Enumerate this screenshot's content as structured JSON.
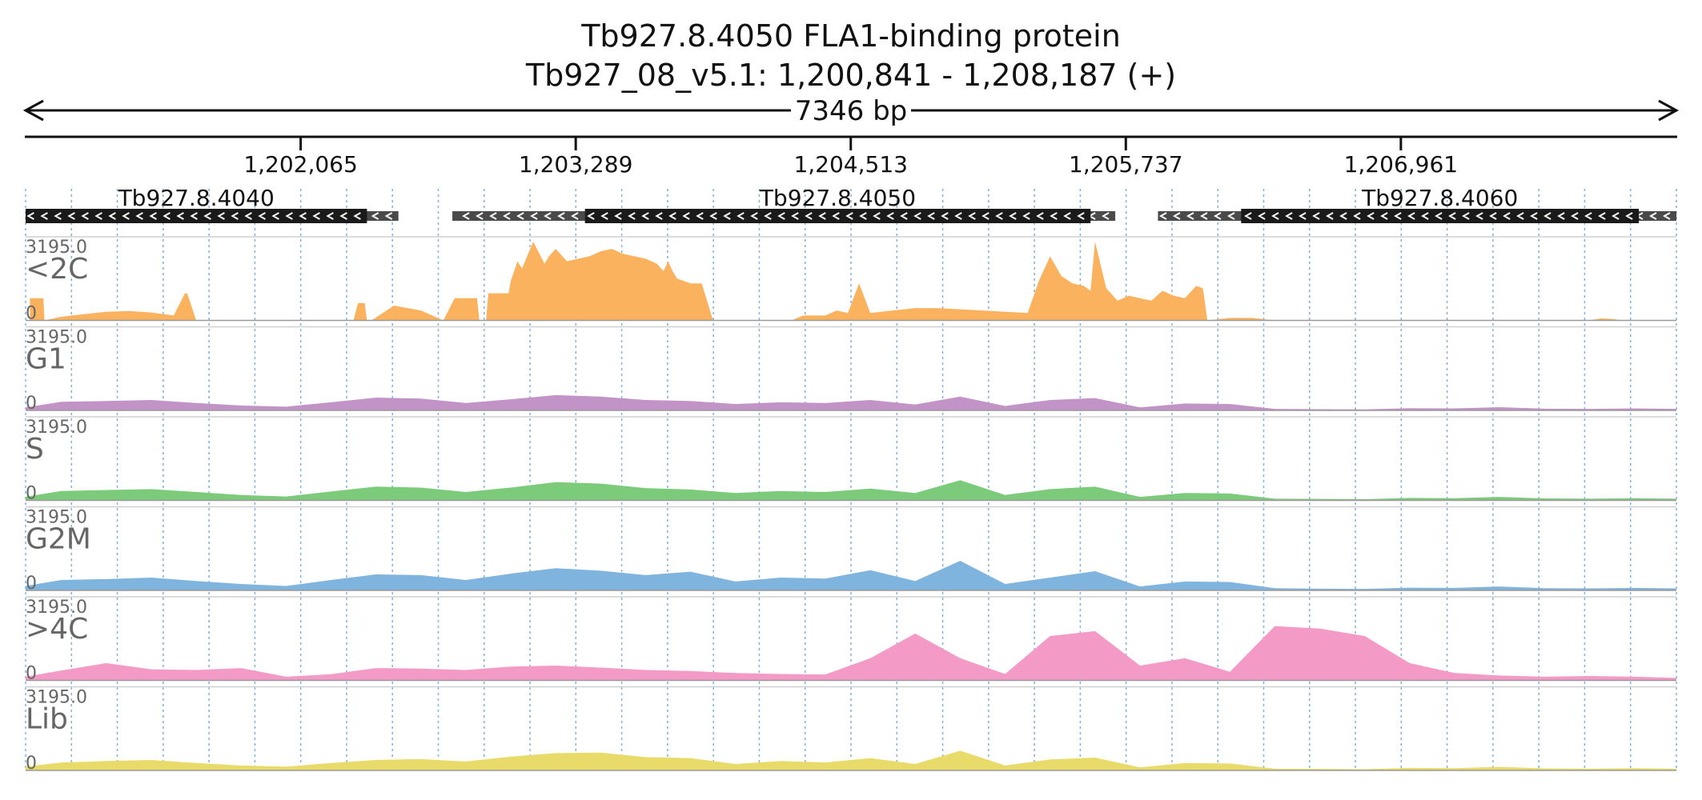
{
  "colors": {
    "c2c": "#fbb25e",
    "g1": "#c293c6",
    "s": "#7ccb7b",
    "g2m": "#7fb4df",
    "c4c": "#f39ac6",
    "lib": "#e8db6a",
    "gene_box": "#1a1a1a",
    "utr": "#4a4a4a",
    "grid": "#7fb2dd"
  },
  "chart_data": {
    "type": "area",
    "title": "Tb927.8.4050  FLA1-binding protein",
    "subtitle": "Tb927_08_v5.1: 1,200,841 - 1,208,187 (+)",
    "span_label": "7346 bp",
    "xlim": [
      1200841,
      1208187
    ],
    "ticks": [
      {
        "pos": 1202065,
        "label": "1,202,065"
      },
      {
        "pos": 1203289,
        "label": "1,203,289"
      },
      {
        "pos": 1204513,
        "label": "1,204,513"
      },
      {
        "pos": 1205737,
        "label": "1,205,737"
      },
      {
        "pos": 1206961,
        "label": "1,206,961"
      }
    ],
    "genes": [
      {
        "name": "Tb927.8.4040",
        "start": 1200841,
        "end": 1202360,
        "utr_end": 1202500
      },
      {
        "name": "Tb927.8.4050",
        "start": 1203330,
        "end": 1205580,
        "utr_start": 1202740,
        "utr_end": 1205690
      },
      {
        "name": "Tb927.8.4060",
        "start": 1206250,
        "end": 1208020,
        "utr_start": 1205880,
        "utr_end": 1208187
      }
    ],
    "ylim": [
      0,
      3195.0
    ],
    "tracks": [
      {
        "name": "<2C",
        "ymax_label": "3195.0",
        "ymin_label": "0",
        "color_key": "c2c",
        "x": [
          1200860,
          1200920,
          1200925,
          1201000,
          1201100,
          1201200,
          1201300,
          1201400,
          1201500,
          1201550,
          1201560,
          1201600,
          1201620,
          1201680,
          1201690,
          1202300,
          1202320,
          1202350,
          1202360,
          1202380,
          1202480,
          1202600,
          1202700,
          1202750,
          1202850,
          1202860,
          1202890,
          1202900,
          1202990,
          1203000,
          1203030,
          1203050,
          1203100,
          1203150,
          1203170,
          1203200,
          1203250,
          1203300,
          1203350,
          1203400,
          1203450,
          1203500,
          1203550,
          1203600,
          1203650,
          1203680,
          1203700,
          1203720,
          1203740,
          1203800,
          1203850,
          1203900,
          1204250,
          1204300,
          1204400,
          1204450,
          1204500,
          1204550,
          1204600,
          1204700,
          1204800,
          1204900,
          1205000,
          1205100,
          1205200,
          1205300,
          1205350,
          1205400,
          1205450,
          1205500,
          1205550,
          1205580,
          1205600,
          1205650,
          1205700,
          1205750,
          1205800,
          1205850,
          1205900,
          1205950,
          1206000,
          1206050,
          1206080,
          1206100,
          1206200,
          1206300,
          1206400,
          1207800,
          1207850,
          1207900,
          1207950,
          1208187
        ],
        "y": [
          900,
          900,
          0,
          150,
          250,
          350,
          380,
          320,
          200,
          1100,
          1100,
          0,
          0,
          0,
          0,
          0,
          700,
          700,
          0,
          0,
          600,
          400,
          0,
          900,
          900,
          0,
          0,
          1100,
          1100,
          1600,
          2400,
          2100,
          3195,
          2300,
          2600,
          2900,
          2400,
          2500,
          2600,
          2800,
          2900,
          2700,
          2600,
          2500,
          2300,
          2000,
          2400,
          2000,
          1700,
          1500,
          1500,
          0,
          0,
          200,
          200,
          400,
          300,
          1500,
          300,
          400,
          500,
          500,
          450,
          400,
          350,
          300,
          1600,
          2600,
          1800,
          1500,
          1400,
          1200,
          3195,
          1300,
          800,
          1000,
          900,
          800,
          1200,
          1000,
          900,
          1400,
          1300,
          0,
          100,
          100,
          0,
          0,
          80,
          60,
          0,
          0
        ]
      },
      {
        "name": "G1",
        "ymax_label": "3195.0",
        "ymin_label": "0",
        "color_key": "g1",
        "x": [
          1200841,
          1201000,
          1201200,
          1201400,
          1201600,
          1201800,
          1202000,
          1202200,
          1202400,
          1202600,
          1202800,
          1203000,
          1203200,
          1203400,
          1203600,
          1203800,
          1204000,
          1204200,
          1204400,
          1204600,
          1204800,
          1205000,
          1205200,
          1205400,
          1205600,
          1205800,
          1206000,
          1206200,
          1206400,
          1206600,
          1206800,
          1207000,
          1207200,
          1207400,
          1207600,
          1207800,
          1208000,
          1208187
        ],
        "y": [
          120,
          350,
          380,
          420,
          300,
          200,
          150,
          330,
          520,
          480,
          300,
          450,
          620,
          560,
          420,
          380,
          260,
          330,
          300,
          420,
          240,
          560,
          180,
          420,
          500,
          120,
          280,
          260,
          60,
          50,
          40,
          90,
          80,
          130,
          70,
          60,
          80,
          60
        ]
      },
      {
        "name": "S",
        "ymax_label": "3195.0",
        "ymin_label": "0",
        "color_key": "s",
        "x": [
          1200841,
          1201000,
          1201200,
          1201400,
          1201600,
          1201800,
          1202000,
          1202200,
          1202400,
          1202600,
          1202800,
          1203000,
          1203200,
          1203400,
          1203600,
          1203800,
          1204000,
          1204200,
          1204400,
          1204600,
          1204800,
          1205000,
          1205200,
          1205400,
          1205600,
          1205800,
          1206000,
          1206200,
          1206400,
          1206600,
          1206800,
          1207000,
          1207200,
          1207400,
          1207600,
          1207800,
          1208000,
          1208187
        ],
        "y": [
          150,
          380,
          420,
          460,
          340,
          220,
          160,
          360,
          560,
          520,
          340,
          520,
          740,
          680,
          500,
          440,
          300,
          380,
          340,
          480,
          300,
          820,
          220,
          460,
          560,
          140,
          300,
          280,
          70,
          60,
          50,
          100,
          90,
          140,
          80,
          70,
          90,
          70
        ]
      },
      {
        "name": "G2M",
        "ymax_label": "3195.0",
        "ymin_label": "0",
        "color_key": "g2m",
        "x": [
          1200841,
          1201000,
          1201200,
          1201400,
          1201600,
          1201800,
          1202000,
          1202200,
          1202400,
          1202600,
          1202800,
          1203000,
          1203200,
          1203400,
          1203600,
          1203800,
          1204000,
          1204200,
          1204400,
          1204600,
          1204800,
          1205000,
          1205200,
          1205400,
          1205600,
          1205800,
          1206000,
          1206200,
          1206400,
          1206600,
          1206800,
          1207000,
          1207200,
          1207400,
          1207600,
          1207800,
          1208000,
          1208187
        ],
        "y": [
          180,
          420,
          460,
          520,
          380,
          260,
          180,
          420,
          650,
          620,
          420,
          680,
          900,
          800,
          620,
          760,
          360,
          520,
          480,
          820,
          380,
          1200,
          260,
          520,
          780,
          160,
          360,
          340,
          90,
          70,
          60,
          110,
          100,
          160,
          90,
          80,
          100,
          80
        ]
      },
      {
        "name": ">4C",
        "ymax_label": "3195.0",
        "ymin_label": "0",
        "color_key": "c4c",
        "x": [
          1200841,
          1201000,
          1201200,
          1201400,
          1201600,
          1201800,
          1202000,
          1202200,
          1202400,
          1202600,
          1202800,
          1203000,
          1203200,
          1203400,
          1203600,
          1203800,
          1204000,
          1204200,
          1204400,
          1204600,
          1204800,
          1205000,
          1205200,
          1205400,
          1205600,
          1205800,
          1206000,
          1206200,
          1206400,
          1206600,
          1206800,
          1207000,
          1207200,
          1207400,
          1207600,
          1207800,
          1208000,
          1208187
        ],
        "y": [
          150,
          400,
          700,
          450,
          420,
          500,
          150,
          250,
          500,
          480,
          420,
          560,
          600,
          520,
          420,
          380,
          300,
          260,
          240,
          900,
          1900,
          900,
          260,
          1800,
          2000,
          600,
          900,
          350,
          2200,
          2100,
          1800,
          700,
          300,
          200,
          150,
          180,
          150,
          100
        ]
      },
      {
        "name": "Lib",
        "ymax_label": "3195.0",
        "ymin_label": "0",
        "color_key": "lib",
        "x": [
          1200841,
          1201000,
          1201200,
          1201400,
          1201600,
          1201800,
          1202000,
          1202200,
          1202400,
          1202600,
          1202800,
          1203000,
          1203200,
          1203400,
          1203600,
          1203800,
          1204000,
          1204200,
          1204400,
          1204600,
          1204800,
          1205000,
          1205200,
          1205400,
          1205600,
          1205800,
          1206000,
          1206200,
          1206400,
          1206600,
          1206800,
          1207000,
          1207200,
          1207400,
          1207600,
          1207800,
          1208000,
          1208187
        ],
        "y": [
          150,
          320,
          380,
          420,
          300,
          200,
          150,
          300,
          420,
          460,
          360,
          560,
          700,
          720,
          540,
          500,
          260,
          380,
          320,
          500,
          260,
          800,
          200,
          440,
          520,
          120,
          300,
          280,
          70,
          60,
          50,
          100,
          90,
          140,
          80,
          70,
          90,
          70
        ]
      }
    ]
  }
}
